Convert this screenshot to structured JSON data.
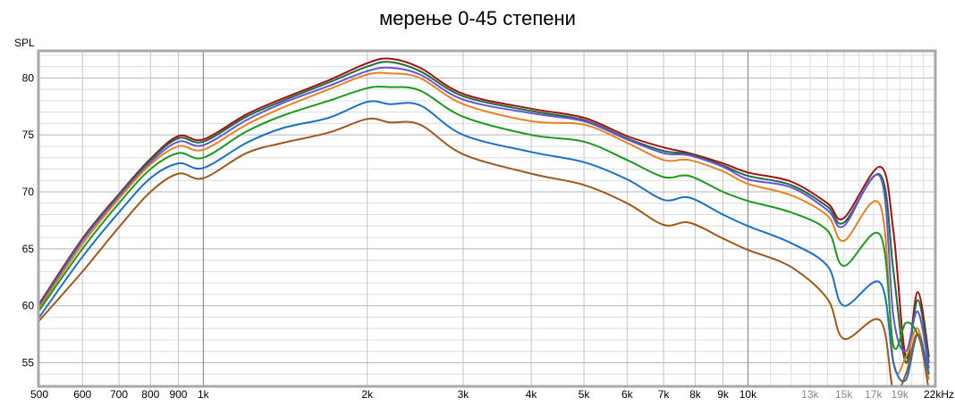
{
  "chart_data": {
    "type": "line",
    "title": "мерење 0-45 степени",
    "ylabel": "SPL",
    "xlabel": "",
    "x_unit_label": "kHz",
    "x_scale": "log",
    "xlim": [
      500,
      22000
    ],
    "ylim": [
      53,
      82.3
    ],
    "grid": true,
    "legend": "none",
    "y_ticks": [
      55,
      60,
      65,
      70,
      75,
      80
    ],
    "x_ticks": [
      {
        "value": 500,
        "label": "500",
        "dim": false
      },
      {
        "value": 600,
        "label": "600",
        "dim": false
      },
      {
        "value": 700,
        "label": "700",
        "dim": false
      },
      {
        "value": 800,
        "label": "800",
        "dim": false
      },
      {
        "value": 900,
        "label": "900",
        "dim": false
      },
      {
        "value": 1000,
        "label": "1k",
        "dim": false
      },
      {
        "value": 2000,
        "label": "2k",
        "dim": false
      },
      {
        "value": 3000,
        "label": "3k",
        "dim": false
      },
      {
        "value": 4000,
        "label": "4k",
        "dim": false
      },
      {
        "value": 5000,
        "label": "5k",
        "dim": false
      },
      {
        "value": 6000,
        "label": "6k",
        "dim": false
      },
      {
        "value": 7000,
        "label": "7k",
        "dim": false
      },
      {
        "value": 8000,
        "label": "8k",
        "dim": false
      },
      {
        "value": 9000,
        "label": "9k",
        "dim": false
      },
      {
        "value": 10000,
        "label": "10k",
        "dim": false
      },
      {
        "value": 13000,
        "label": "13k",
        "dim": true
      },
      {
        "value": 15000,
        "label": "15k",
        "dim": true
      },
      {
        "value": 17000,
        "label": "17k",
        "dim": true
      },
      {
        "value": 19000,
        "label": "19k",
        "dim": true
      },
      {
        "value": 22000,
        "label": "22kHz",
        "dim": false
      }
    ],
    "x": [
      500,
      600,
      700,
      800,
      900,
      1000,
      1200,
      1400,
      1700,
      2000,
      2200,
      2500,
      3000,
      4000,
      5000,
      6000,
      7000,
      7800,
      9000,
      10000,
      12000,
      14000,
      15000,
      17500,
      18500,
      19500,
      20500,
      21500
    ],
    "series": [
      {
        "color": "#a01010",
        "values": [
          60.2,
          65.9,
          69.8,
          72.9,
          74.9,
          74.6,
          76.8,
          78.2,
          79.8,
          81.3,
          81.7,
          80.9,
          78.6,
          77.3,
          76.5,
          74.9,
          73.9,
          73.4,
          72.5,
          71.7,
          70.9,
          69.0,
          67.7,
          72.2,
          66.5,
          55.5,
          61.2,
          55.5
        ]
      },
      {
        "color": "#1f6b3a",
        "values": [
          60.1,
          65.8,
          69.7,
          72.8,
          74.7,
          74.4,
          76.6,
          78.0,
          79.6,
          81.0,
          81.4,
          80.6,
          78.4,
          77.1,
          76.3,
          74.7,
          73.6,
          73.3,
          72.3,
          71.4,
          70.6,
          68.7,
          67.3,
          71.5,
          63.0,
          55.0,
          60.5,
          55.0
        ]
      },
      {
        "color": "#6455d8",
        "values": [
          60.0,
          65.7,
          69.6,
          72.6,
          74.4,
          74.1,
          76.3,
          77.8,
          79.3,
          80.6,
          80.9,
          80.3,
          78.1,
          76.9,
          76.2,
          74.6,
          73.4,
          73.2,
          72.2,
          71.1,
          70.4,
          68.4,
          67.0,
          71.3,
          59.0,
          56.0,
          59.5,
          54.5
        ]
      },
      {
        "color": "#e8801e",
        "values": [
          59.8,
          65.4,
          69.4,
          72.4,
          74.0,
          73.7,
          75.9,
          77.4,
          79.0,
          80.3,
          80.4,
          80.0,
          77.7,
          76.2,
          75.9,
          74.3,
          72.8,
          72.8,
          71.8,
          70.7,
          69.7,
          67.9,
          65.7,
          68.8,
          55.0,
          55.5,
          58.0,
          53.5
        ]
      },
      {
        "color": "#1a9a1a",
        "values": [
          59.6,
          65.0,
          69.0,
          72.0,
          73.4,
          73.0,
          75.3,
          76.7,
          78.0,
          79.1,
          79.2,
          78.9,
          76.6,
          75.0,
          74.4,
          72.8,
          71.3,
          71.4,
          70.0,
          69.2,
          68.2,
          66.6,
          63.5,
          66.2,
          56.5,
          58.5,
          57.5,
          54.0
        ]
      },
      {
        "color": "#1a70c8",
        "values": [
          59.0,
          64.3,
          68.2,
          71.2,
          72.5,
          72.1,
          74.3,
          75.6,
          76.5,
          77.9,
          77.7,
          77.6,
          75.0,
          73.5,
          72.6,
          71.1,
          69.3,
          69.5,
          68.0,
          67.0,
          65.5,
          63.5,
          60.0,
          62.0,
          55.0,
          53.5,
          57.5,
          54.0
        ]
      },
      {
        "color": "#a0581a",
        "values": [
          58.7,
          63.0,
          66.9,
          70.0,
          71.6,
          71.2,
          73.4,
          74.3,
          75.2,
          76.4,
          76.1,
          75.9,
          73.3,
          71.6,
          70.6,
          69.0,
          67.1,
          67.3,
          65.9,
          64.9,
          63.4,
          60.6,
          57.1,
          58.7,
          52.5,
          54.0,
          57.5,
          52.5
        ]
      }
    ]
  }
}
